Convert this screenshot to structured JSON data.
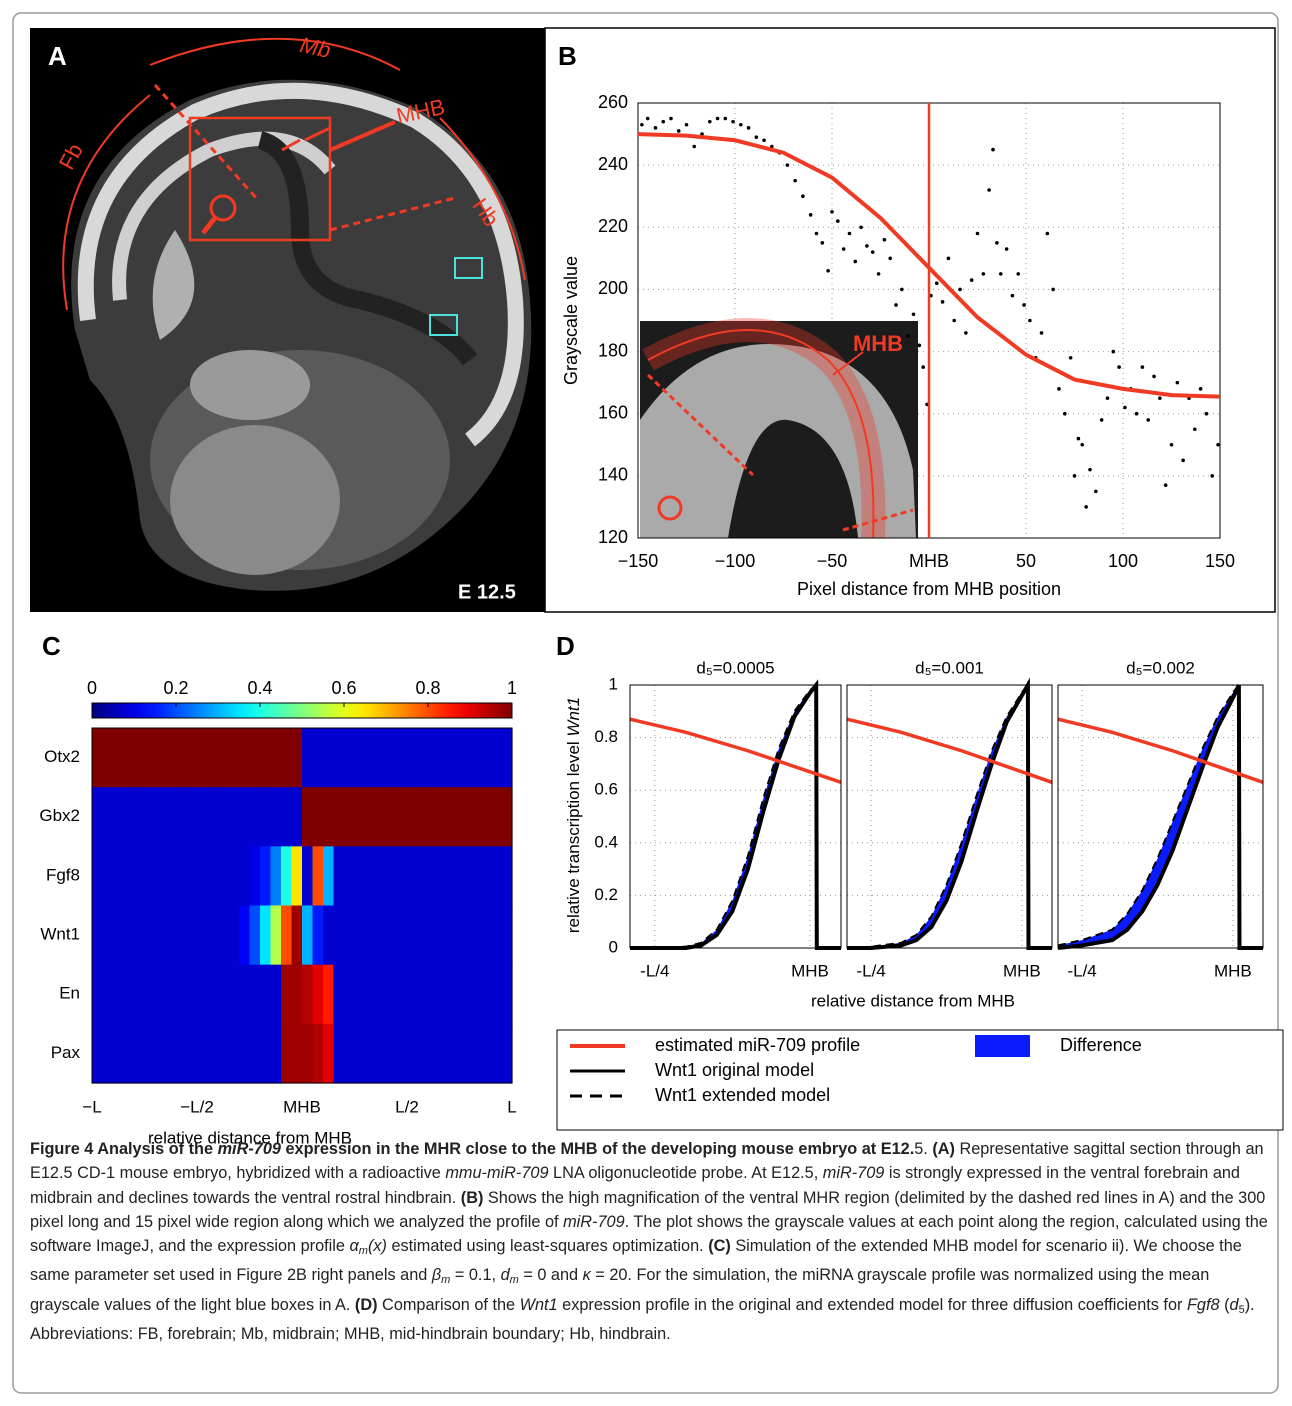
{
  "panels": {
    "a": {
      "label": "A",
      "mb": "Mb",
      "mhb": "MHB",
      "fb": "Fb",
      "hb": "Hb",
      "stage": "E 12.5"
    },
    "b": {
      "label": "B",
      "inset_label": "MHB"
    },
    "c": {
      "label": "C"
    },
    "d": {
      "label": "D"
    }
  },
  "chart_data": [
    {
      "type": "scatter",
      "xlabel": "Pixel distance from MHB position",
      "ylabel": "Grayscale value",
      "xlim": [
        -150,
        150
      ],
      "ylim": [
        120,
        260
      ],
      "xticks": [
        {
          "value": -150,
          "label": "−150"
        },
        {
          "value": -100,
          "label": "−100"
        },
        {
          "value": -50,
          "label": "−50"
        },
        {
          "value": 0,
          "label": "MHB"
        },
        50,
        100,
        150
      ],
      "yticks": [
        120,
        140,
        160,
        180,
        200,
        220,
        240,
        260
      ],
      "grid": true,
      "mhb_x": 0,
      "mhb_color": "#f03a24",
      "series": [
        {
          "color": "#000000",
          "x": [
            -148,
            -145,
            -141,
            -137,
            -133,
            -129,
            -125,
            -121,
            -117,
            -113,
            -109,
            -105,
            -101,
            -97,
            -93,
            -89,
            -85,
            -81,
            -77,
            -73,
            -69,
            -65,
            -61,
            -58,
            -55,
            -52,
            -50,
            -47,
            -44,
            -41,
            -38,
            -35,
            -32,
            -29,
            -26,
            -23,
            -20,
            -17,
            -14,
            -11,
            -8,
            -5,
            -3,
            -1,
            1,
            4,
            7,
            10,
            13,
            16,
            19,
            22,
            25,
            28,
            31,
            33,
            35,
            37,
            40,
            43,
            46,
            49,
            52,
            55,
            58,
            61,
            64,
            67,
            70,
            73,
            75,
            77,
            79,
            81,
            83,
            86,
            89,
            92,
            95,
            98,
            101,
            104,
            107,
            110,
            113,
            116,
            119,
            122,
            125,
            128,
            131,
            134,
            137,
            140,
            143,
            146,
            149
          ],
          "values": [
            253,
            255,
            252,
            254,
            255,
            251,
            253,
            246,
            250,
            254,
            255,
            255,
            254,
            253,
            252,
            249,
            248,
            246,
            244,
            240,
            235,
            230,
            224,
            218,
            215,
            206,
            225,
            222,
            213,
            218,
            209,
            220,
            214,
            212,
            205,
            216,
            210,
            195,
            200,
            185,
            192,
            182,
            175,
            163,
            198,
            202,
            196,
            210,
            190,
            200,
            186,
            203,
            218,
            205,
            232,
            245,
            215,
            205,
            213,
            198,
            205,
            195,
            190,
            178,
            186,
            218,
            200,
            168,
            160,
            178,
            140,
            152,
            150,
            130,
            142,
            135,
            158,
            165,
            180,
            175,
            162,
            168,
            160,
            175,
            158,
            172,
            165,
            137,
            150,
            170,
            145,
            165,
            155,
            168,
            160,
            140,
            150
          ]
        },
        {
          "color": "#f03a24",
          "x": [
            -150,
            -125,
            -100,
            -75,
            -50,
            -25,
            0,
            25,
            50,
            75,
            100,
            125,
            150
          ],
          "values": [
            250,
            249.5,
            248,
            244,
            236,
            223,
            207,
            191,
            179,
            171,
            168,
            166,
            165.5
          ]
        }
      ]
    },
    {
      "type": "heatmap",
      "xlabel": "relative distance from MHB",
      "xlim": [
        -1,
        1
      ],
      "xticks": [
        {
          "value": -1,
          "label": "−L"
        },
        {
          "value": -0.5,
          "label": "−L/2"
        },
        {
          "value": 0,
          "label": "MHB"
        },
        {
          "value": 0.5,
          "label": "L/2"
        },
        {
          "value": 1,
          "label": "L"
        }
      ],
      "clim": [
        0,
        1
      ],
      "cticks": [
        0,
        0.2,
        0.4,
        0.6,
        0.8,
        1
      ],
      "colormap": "jet",
      "rows": [
        "Otx2",
        "Gbx2",
        "Fgf8",
        "Wnt1",
        "En",
        "Pax"
      ],
      "values": [
        [
          1,
          1,
          1,
          1,
          1,
          1,
          1,
          1,
          1,
          1,
          1,
          1,
          1,
          1,
          1,
          1,
          1,
          1,
          1,
          1,
          0.08,
          0.08,
          0.08,
          0.08,
          0.08,
          0.08,
          0.08,
          0.08,
          0.08,
          0.08,
          0.08,
          0.08,
          0.08,
          0.08,
          0.08,
          0.08,
          0.08,
          0.08,
          0.08,
          0.08
        ],
        [
          0.08,
          0.08,
          0.08,
          0.08,
          0.08,
          0.08,
          0.08,
          0.08,
          0.08,
          0.08,
          0.08,
          0.08,
          0.08,
          0.08,
          0.08,
          0.08,
          0.08,
          0.08,
          0.08,
          0.08,
          1,
          1,
          1,
          1,
          1,
          1,
          1,
          1,
          1,
          1,
          1,
          1,
          1,
          1,
          1,
          1,
          1,
          1,
          1,
          1
        ],
        [
          0.08,
          0.08,
          0.08,
          0.08,
          0.08,
          0.08,
          0.08,
          0.08,
          0.08,
          0.08,
          0.08,
          0.08,
          0.08,
          0.08,
          0.08,
          0.1,
          0.15,
          0.25,
          0.4,
          0.65,
          0.08,
          0.8,
          0.3,
          0.08,
          0.08,
          0.08,
          0.08,
          0.08,
          0.08,
          0.08,
          0.08,
          0.08,
          0.08,
          0.08,
          0.08,
          0.08,
          0.08,
          0.08,
          0.08,
          0.08
        ],
        [
          0.08,
          0.08,
          0.08,
          0.08,
          0.08,
          0.08,
          0.08,
          0.08,
          0.08,
          0.08,
          0.08,
          0.08,
          0.08,
          0.08,
          0.12,
          0.2,
          0.35,
          0.55,
          0.8,
          0.97,
          0.3,
          0.15,
          0.08,
          0.08,
          0.08,
          0.08,
          0.08,
          0.08,
          0.08,
          0.08,
          0.08,
          0.08,
          0.08,
          0.08,
          0.08,
          0.08,
          0.08,
          0.08,
          0.08,
          0.08
        ],
        [
          0.08,
          0.08,
          0.08,
          0.08,
          0.08,
          0.08,
          0.08,
          0.08,
          0.08,
          0.08,
          0.08,
          0.08,
          0.08,
          0.08,
          0.08,
          0.08,
          0.08,
          0.08,
          0.97,
          0.97,
          0.95,
          0.9,
          0.85,
          0.08,
          0.08,
          0.08,
          0.08,
          0.08,
          0.08,
          0.08,
          0.08,
          0.08,
          0.08,
          0.08,
          0.08,
          0.08,
          0.08,
          0.08,
          0.08,
          0.08
        ],
        [
          0.08,
          0.08,
          0.08,
          0.08,
          0.08,
          0.08,
          0.08,
          0.08,
          0.08,
          0.08,
          0.08,
          0.08,
          0.08,
          0.08,
          0.08,
          0.08,
          0.08,
          0.08,
          0.97,
          0.97,
          0.97,
          0.95,
          0.9,
          0.08,
          0.08,
          0.08,
          0.08,
          0.08,
          0.08,
          0.08,
          0.08,
          0.08,
          0.08,
          0.08,
          0.08,
          0.08,
          0.08,
          0.08,
          0.08,
          0.08
        ]
      ]
    },
    {
      "type": "line",
      "xlabel": "relative distance from MHB",
      "ylabel": "relative transcription level ",
      "ylabel_gene": "Wnt1",
      "xlim": [
        -0.29,
        0.05
      ],
      "ylim": [
        0,
        1
      ],
      "grid": true,
      "xticks": [
        {
          "value": -0.25,
          "label": "-L/4"
        },
        {
          "value": 0,
          "label": "MHB"
        }
      ],
      "yticks": [
        0,
        0.2,
        0.4,
        0.6,
        0.8,
        1
      ],
      "legend": [
        {
          "name": "estimated miR-709 profile",
          "color": "#f03a24"
        },
        {
          "name": "Wnt1 original model",
          "color": "#000000"
        },
        {
          "name": "Wnt1 extended model",
          "color": "#000000",
          "dashed": true
        },
        {
          "name": "Difference",
          "color": "#0a1cff"
        }
      ],
      "profile": {
        "x": [
          -0.29,
          -0.2,
          -0.1,
          0,
          0.05
        ],
        "values": [
          0.87,
          0.82,
          0.75,
          0.67,
          0.63
        ]
      },
      "x": [
        -0.29,
        -0.25,
        -0.2,
        -0.175,
        -0.15,
        -0.125,
        -0.1,
        -0.075,
        -0.05,
        -0.025,
        0,
        0.01,
        0.011,
        0.05
      ],
      "panels": [
        {
          "title": "d₅=0.0005",
          "original": [
            0,
            0,
            0,
            0.01,
            0.05,
            0.14,
            0.3,
            0.52,
            0.72,
            0.88,
            0.97,
            1,
            0,
            0
          ],
          "extended": [
            0,
            0,
            0.005,
            0.02,
            0.07,
            0.18,
            0.35,
            0.57,
            0.76,
            0.9,
            0.98,
            1,
            0,
            0
          ]
        },
        {
          "title": "d₅=0.001",
          "original": [
            0,
            0,
            0.01,
            0.03,
            0.08,
            0.18,
            0.33,
            0.52,
            0.7,
            0.86,
            0.96,
            1,
            0,
            0
          ],
          "extended": [
            0,
            0.005,
            0.02,
            0.05,
            0.12,
            0.24,
            0.4,
            0.58,
            0.75,
            0.88,
            0.97,
            1,
            0,
            0
          ]
        },
        {
          "title": "d₅=0.002",
          "original": [
            0,
            0.01,
            0.03,
            0.07,
            0.14,
            0.24,
            0.37,
            0.53,
            0.69,
            0.84,
            0.95,
            1,
            0,
            0
          ],
          "extended": [
            0.01,
            0.03,
            0.07,
            0.13,
            0.22,
            0.34,
            0.48,
            0.62,
            0.76,
            0.88,
            0.97,
            1,
            0,
            0
          ]
        }
      ]
    }
  ],
  "caption": [
    "Figure 4 Analysis of the ",
    "miR-709",
    " expression in the MHR close to the MHB of the developing mouse embryo at E12.",
    "5. ",
    "(A)",
    " Representative sagittal section through an E12.5 CD-1 mouse embryo, hybridized with a radioactive ",
    "mmu-miR-709",
    " LNA oligonucleotide probe. At E12.5, ",
    "miR-709",
    " is strongly expressed in the ventral forebrain and midbrain and declines towards the ventral rostral hindbrain. ",
    "(B)",
    " Shows the high magnification of the ventral MHR region (delimited by the dashed red lines in A) and the 300 pixel long and 15 pixel wide region along which we analyzed the profile of ",
    "miR-709",
    ". The plot shows the grayscale values at each point along the region, calculated using the software ImageJ, and the expression profile ",
    "α",
    "m",
    "(x)",
    " estimated using least-squares optimization. ",
    "(C)",
    " Simulation of the extended MHB model for scenario ii). We choose the same parameter set used in Figure 2B right panels and ",
    "β",
    "m",
    " = 0.1, ",
    "d",
    "m",
    " = 0 and ",
    "κ",
    " = 20. For the simulation, the miRNA grayscale profile was normalized using the mean grayscale values of the light blue boxes in A. ",
    "(D)",
    " Comparison of the ",
    "Wnt1",
    " expression profile in the original and extended model for three diffusion coefficients for ",
    "Fgf8",
    " (",
    "d",
    "5",
    "). Abbreviations: FB, forebrain; Mb, midbrain; MHB, mid-hindbrain boundary; Hb, hindbrain."
  ]
}
